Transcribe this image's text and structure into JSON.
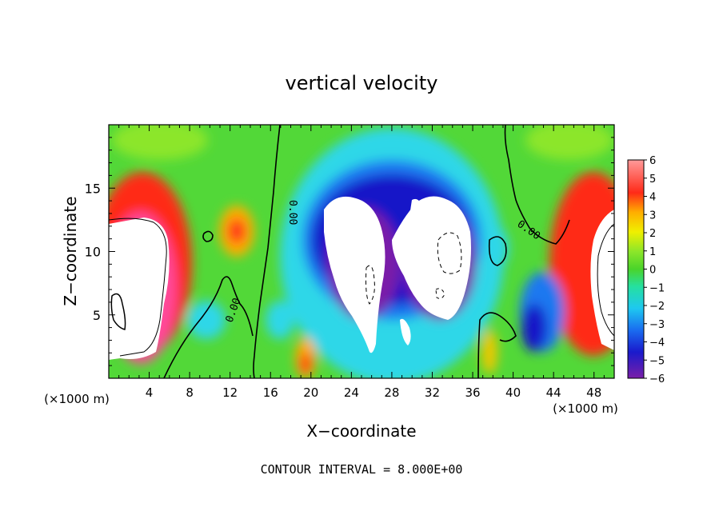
{
  "chart_data": {
    "type": "heatmap",
    "title": "vertical velocity",
    "xlabel": "X−coordinate",
    "ylabel": "Z−coordinate",
    "x_unit": "(×1000 m)",
    "y_unit": "(×1000 m)",
    "xlim": [
      0,
      50
    ],
    "ylim": [
      0,
      20
    ],
    "x_ticks": [
      4,
      8,
      12,
      16,
      20,
      24,
      28,
      32,
      36,
      40,
      44,
      48
    ],
    "y_ticks": [
      5,
      10,
      15
    ],
    "footer": "CONTOUR INTERVAL = 8.000E+00",
    "contour_labels": [
      "0.00",
      "0.00",
      "0.00"
    ],
    "colorbar": {
      "ticks": [
        "6",
        "5",
        "4",
        "3",
        "2",
        "1",
        "0",
        "−1",
        "−2",
        "−3",
        "−4",
        "−5",
        "−6"
      ],
      "range": [
        -6,
        6
      ],
      "note": "values outside the range are left white"
    },
    "features": [
      {
        "kind": "updraft",
        "x": 3,
        "z": 9,
        "value": 8
      },
      {
        "kind": "downdraft",
        "x": 26,
        "z": 10,
        "value": -9
      },
      {
        "kind": "downdraft",
        "x": 31,
        "z": 10,
        "value": -9
      },
      {
        "kind": "updraft",
        "x": 49,
        "z": 8,
        "value": 8
      },
      {
        "kind": "updraft",
        "x": 13,
        "z": 11.5,
        "value": 3.5
      },
      {
        "kind": "updraft",
        "x": 19.5,
        "z": 1,
        "value": 4
      }
    ]
  },
  "colors": {
    "text": "#000000",
    "background": "#ffffff"
  }
}
